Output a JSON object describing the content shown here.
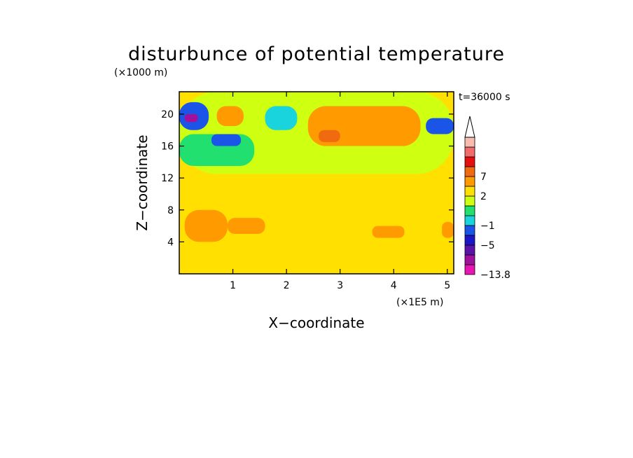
{
  "chart_data": {
    "type": "heatmap",
    "title": "disturbunce of potential temperature",
    "xlabel": "X−coordinate",
    "ylabel": "Z−coordinate",
    "x_unit": "(×1E5 m)",
    "y_unit": "(×1000 m)",
    "time_label": "t=36000 s",
    "xlim": [
      0,
      5.12
    ],
    "ylim": [
      0,
      22.8
    ],
    "x_ticks": [
      1,
      2,
      3,
      4,
      5
    ],
    "y_ticks": [
      4,
      8,
      12,
      16,
      20
    ],
    "x_tick_labels": [
      "1",
      "2",
      "3",
      "4",
      "5"
    ],
    "y_tick_labels": [
      "4",
      "8",
      "12",
      "16",
      "20"
    ],
    "colorbar": {
      "levels": [
        -13.8,
        -10,
        -7,
        -5,
        -3,
        -1,
        0,
        1,
        2,
        4,
        7,
        10
      ],
      "colors": [
        "#e815b4",
        "#a0119e",
        "#5a14a8",
        "#1b17c8",
        "#1a55e8",
        "#19d4dc",
        "#22e070",
        "#cfff11",
        "#ffe000",
        "#ff9a00",
        "#f06a0f",
        "#e60f0f",
        "#f26a6a",
        "#f7bcb0"
      ],
      "labels": [
        {
          "text": "7",
          "at": 7
        },
        {
          "text": "2",
          "at": 2
        },
        {
          "text": "−1",
          "at": -1
        },
        {
          "text": "−5",
          "at": -5
        },
        {
          "text": "−13.8",
          "at": -13.8
        }
      ],
      "extend_top": true
    },
    "regions": [
      {
        "x": [
          0,
          5.12
        ],
        "y": [
          0,
          22.8
        ],
        "value": 1.5
      },
      {
        "x": [
          0.1,
          0.9
        ],
        "y": [
          4,
          8
        ],
        "value": 2.5
      },
      {
        "x": [
          0.9,
          1.6
        ],
        "y": [
          5,
          7
        ],
        "value": 2.5
      },
      {
        "x": [
          3.6,
          4.2
        ],
        "y": [
          4.5,
          6
        ],
        "value": 2.5
      },
      {
        "x": [
          4.9,
          5.12
        ],
        "y": [
          4.5,
          6.5
        ],
        "value": 2.5
      },
      {
        "x": [
          0,
          5.12
        ],
        "y": [
          12.5,
          22.8
        ],
        "value": 0.5
      },
      {
        "x": [
          0,
          1.4
        ],
        "y": [
          13.5,
          17.5
        ],
        "value": -0.5
      },
      {
        "x": [
          0,
          0.55
        ],
        "y": [
          18,
          21.5
        ],
        "value": -4
      },
      {
        "x": [
          0.1,
          0.35
        ],
        "y": [
          19,
          20
        ],
        "value": -11
      },
      {
        "x": [
          0.6,
          1.15
        ],
        "y": [
          16,
          17.5
        ],
        "value": -4
      },
      {
        "x": [
          0.7,
          1.2
        ],
        "y": [
          18.5,
          21
        ],
        "value": 3
      },
      {
        "x": [
          2.4,
          4.5
        ],
        "y": [
          16,
          21
        ],
        "value": 2.5
      },
      {
        "x": [
          2.6,
          3.0
        ],
        "y": [
          16.5,
          18
        ],
        "value": 4
      },
      {
        "x": [
          4.6,
          5.12
        ],
        "y": [
          17.5,
          19.5
        ],
        "value": -4
      },
      {
        "x": [
          1.6,
          2.2
        ],
        "y": [
          18,
          21
        ],
        "value": -2
      },
      {
        "x": [
          0,
          5.12
        ],
        "y": [
          0,
          1
        ],
        "value": 1.5
      }
    ]
  }
}
